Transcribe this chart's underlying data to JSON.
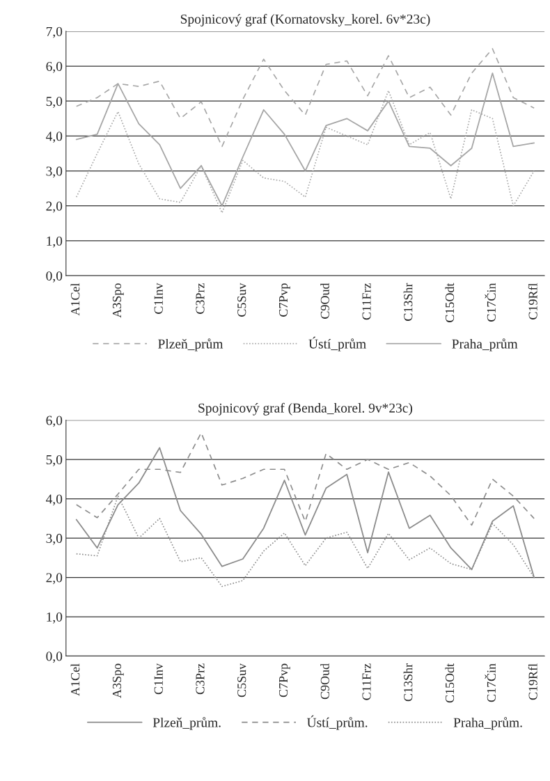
{
  "chart_data": [
    {
      "type": "line",
      "title": "Spojnicový graf (Kornatovsky_korel. 6v*23c)",
      "categories": [
        "A1Cel",
        null,
        "A3Spo",
        null,
        "C1Inv",
        null,
        "C3Prz",
        null,
        "C5Suv",
        null,
        "C7Pvp",
        null,
        "C9Oud",
        null,
        "C11Frz",
        null,
        "C13Shr",
        null,
        "C15Odt",
        null,
        "C17Čin",
        null,
        "C19Rfl"
      ],
      "series": [
        {
          "name": "Plzeň_prům",
          "color": "#a6a6a6",
          "line_style": "dashed",
          "values": [
            4.85,
            5.1,
            5.5,
            5.42,
            5.57,
            4.5,
            4.98,
            3.7,
            5.05,
            6.2,
            5.3,
            4.6,
            6.05,
            6.15,
            5.15,
            6.3,
            5.1,
            5.4,
            4.6,
            5.8,
            6.5,
            5.1,
            4.8
          ]
        },
        {
          "name": "Ústí_prům",
          "color": "#a6a6a6",
          "line_style": "dotted",
          "values": [
            2.25,
            3.5,
            4.7,
            3.2,
            2.2,
            2.1,
            3.15,
            1.8,
            3.3,
            2.8,
            2.7,
            2.25,
            4.25,
            4.0,
            3.75,
            5.3,
            3.75,
            4.1,
            2.2,
            4.75,
            4.5,
            2.0,
            3.0
          ]
        },
        {
          "name": "Praha_prům",
          "color": "#a6a6a6",
          "line_style": "solid",
          "values": [
            3.9,
            4.05,
            5.5,
            4.35,
            3.75,
            2.5,
            3.15,
            2.0,
            3.4,
            4.75,
            4.05,
            3.0,
            4.3,
            4.5,
            4.15,
            5.0,
            3.7,
            3.65,
            3.15,
            3.65,
            5.8,
            3.7,
            3.8
          ]
        }
      ],
      "ylim": [
        0,
        7
      ],
      "yticks": [
        {
          "value": 0,
          "label": "0,0"
        },
        {
          "value": 1,
          "label": "1,0"
        },
        {
          "value": 2,
          "label": "2,0"
        },
        {
          "value": 3,
          "label": "3,0"
        },
        {
          "value": 4,
          "label": "4,0"
        },
        {
          "value": 5,
          "label": "5,0"
        },
        {
          "value": 6,
          "label": "6,0"
        },
        {
          "value": 7,
          "label": "7,0"
        }
      ],
      "grid": "y",
      "legend": "bottom"
    },
    {
      "type": "line",
      "title": "Spojnicový graf (Benda_korel. 9v*23c)",
      "categories": [
        "A1Cel",
        null,
        "A3Spo",
        null,
        "C1Inv",
        null,
        "C3Prz",
        null,
        "C5Suv",
        null,
        "C7Pvp",
        null,
        "C9Oud",
        null,
        "C11Frz",
        null,
        "C13Shr",
        null,
        "C15Odt",
        null,
        "C17Čin",
        null,
        "C19Rfl"
      ],
      "series": [
        {
          "name": "Plzeň_prům.",
          "color": "#8c8c8c",
          "line_style": "solid",
          "values": [
            3.47,
            2.75,
            3.85,
            4.4,
            5.3,
            3.7,
            3.1,
            2.28,
            2.47,
            3.25,
            4.47,
            3.08,
            4.27,
            4.62,
            2.63,
            4.68,
            3.25,
            3.58,
            2.75,
            2.2,
            3.43,
            3.82,
            2.0
          ]
        },
        {
          "name": "Ústí_prům.",
          "color": "#8c8c8c",
          "line_style": "dashed",
          "values": [
            3.85,
            3.52,
            4.12,
            4.75,
            4.75,
            4.67,
            5.68,
            4.35,
            4.52,
            4.75,
            4.75,
            3.42,
            5.15,
            4.75,
            5.0,
            4.75,
            4.92,
            4.58,
            4.08,
            3.33,
            4.5,
            4.07,
            3.5
          ]
        },
        {
          "name": "Praha_prům.",
          "color": "#8c8c8c",
          "line_style": "dotted",
          "values": [
            2.6,
            2.55,
            4.07,
            3.0,
            3.5,
            2.4,
            2.5,
            1.77,
            1.92,
            2.67,
            3.13,
            2.3,
            3.0,
            3.15,
            2.23,
            3.12,
            2.45,
            2.75,
            2.35,
            2.2,
            3.37,
            2.83,
            2.0
          ]
        }
      ],
      "ylim": [
        0,
        6
      ],
      "yticks": [
        {
          "value": 0,
          "label": "0,0"
        },
        {
          "value": 1,
          "label": "1,0"
        },
        {
          "value": 2,
          "label": "2,0"
        },
        {
          "value": 3,
          "label": "3,0"
        },
        {
          "value": 4,
          "label": "4,0"
        },
        {
          "value": 5,
          "label": "5,0"
        },
        {
          "value": 6,
          "label": "6,0"
        }
      ],
      "grid": "y",
      "legend": "bottom"
    }
  ]
}
